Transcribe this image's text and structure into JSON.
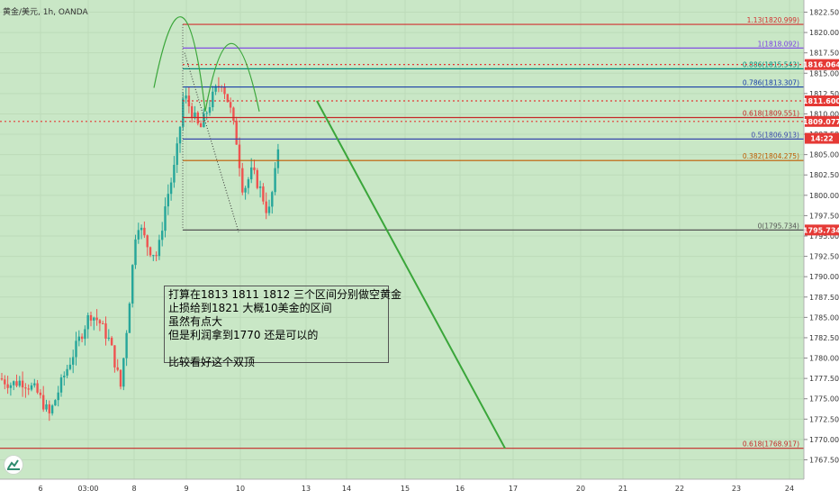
{
  "symbol": "黄金/美元, 1h, OANDA",
  "background_color": "#c9e7c6",
  "note": {
    "lines": [
      "打算在1813 1811 1812 三个区间分别做空黄金",
      "止损给到1821 大概10美金的区间",
      "虽然有点大",
      "但是利润拿到1770 还是可以的",
      "",
      "比较看好这个双顶"
    ]
  },
  "chart_data": {
    "type": "candlestick",
    "title": "",
    "xlabel": "",
    "ylabel": "",
    "ylim": [
      1766.0,
      1823.3
    ],
    "x_ticks": [
      "6",
      "03:00",
      "8",
      "9",
      "10",
      "13",
      "14",
      "15",
      "16",
      "17",
      "20",
      "21",
      "22",
      "23",
      "24"
    ],
    "y_ticks": [
      1767.5,
      1770,
      1772.5,
      1775,
      1777.5,
      1780,
      1782.5,
      1785,
      1787.5,
      1790,
      1792.5,
      1795,
      1797.5,
      1800,
      1802.5,
      1805,
      1807.5,
      1810,
      1812.5,
      1815,
      1817.5,
      1820,
      1822.5
    ],
    "fib_levels": [
      {
        "label": "1.13(1820.999)",
        "ratio": 1.13,
        "price": 1820.999,
        "color": "#d32f2f"
      },
      {
        "label": "1(1818.092)",
        "ratio": 1,
        "price": 1818.092,
        "color": "#7b3fe4"
      },
      {
        "label": "0.886(1815.543)",
        "ratio": 0.886,
        "price": 1815.543,
        "color": "#00897b"
      },
      {
        "label": "0.786(1813.307)",
        "ratio": 0.786,
        "price": 1813.307,
        "color": "#1a3fa8"
      },
      {
        "label": "0.618(1809.551)",
        "ratio": 0.618,
        "price": 1809.551,
        "color": "#c62828"
      },
      {
        "label": "0.5(1806.913)",
        "ratio": 0.5,
        "price": 1806.913,
        "color": "#3949ab"
      },
      {
        "label": "0.382(1804.275)",
        "ratio": 0.382,
        "price": 1804.275,
        "color": "#bf5b00"
      },
      {
        "label": "0(1795.734)",
        "ratio": 0,
        "price": 1795.734,
        "color": "#555555"
      },
      {
        "label": "0.618(1768.917)",
        "ratio": 0.618,
        "price": 1768.917,
        "color": "#c62828"
      }
    ],
    "dotted_levels": [
      {
        "price": 1816.064,
        "color": "#e53935"
      },
      {
        "price": 1811.6,
        "color": "#e53935"
      },
      {
        "price": 1809.077,
        "color": "#e53935"
      }
    ],
    "price_badges": [
      {
        "text": "1816.064",
        "price": 1816.064,
        "color": "#e53935"
      },
      {
        "text": "1811.600",
        "price": 1811.6,
        "color": "#e53935"
      },
      {
        "text": "1809.077",
        "price": 1809.077,
        "color": "#e53935"
      },
      {
        "text": "14:22",
        "price": 1807.0,
        "color": "#e53935"
      },
      {
        "text": "1795.734",
        "price": 1795.734,
        "color": "#e53935"
      }
    ],
    "projection": {
      "from_price": 1811.6,
      "to_price": 1768.917,
      "color": "#3aa63a"
    },
    "up_color": "#26a69a",
    "down_color": "#ef5350"
  }
}
